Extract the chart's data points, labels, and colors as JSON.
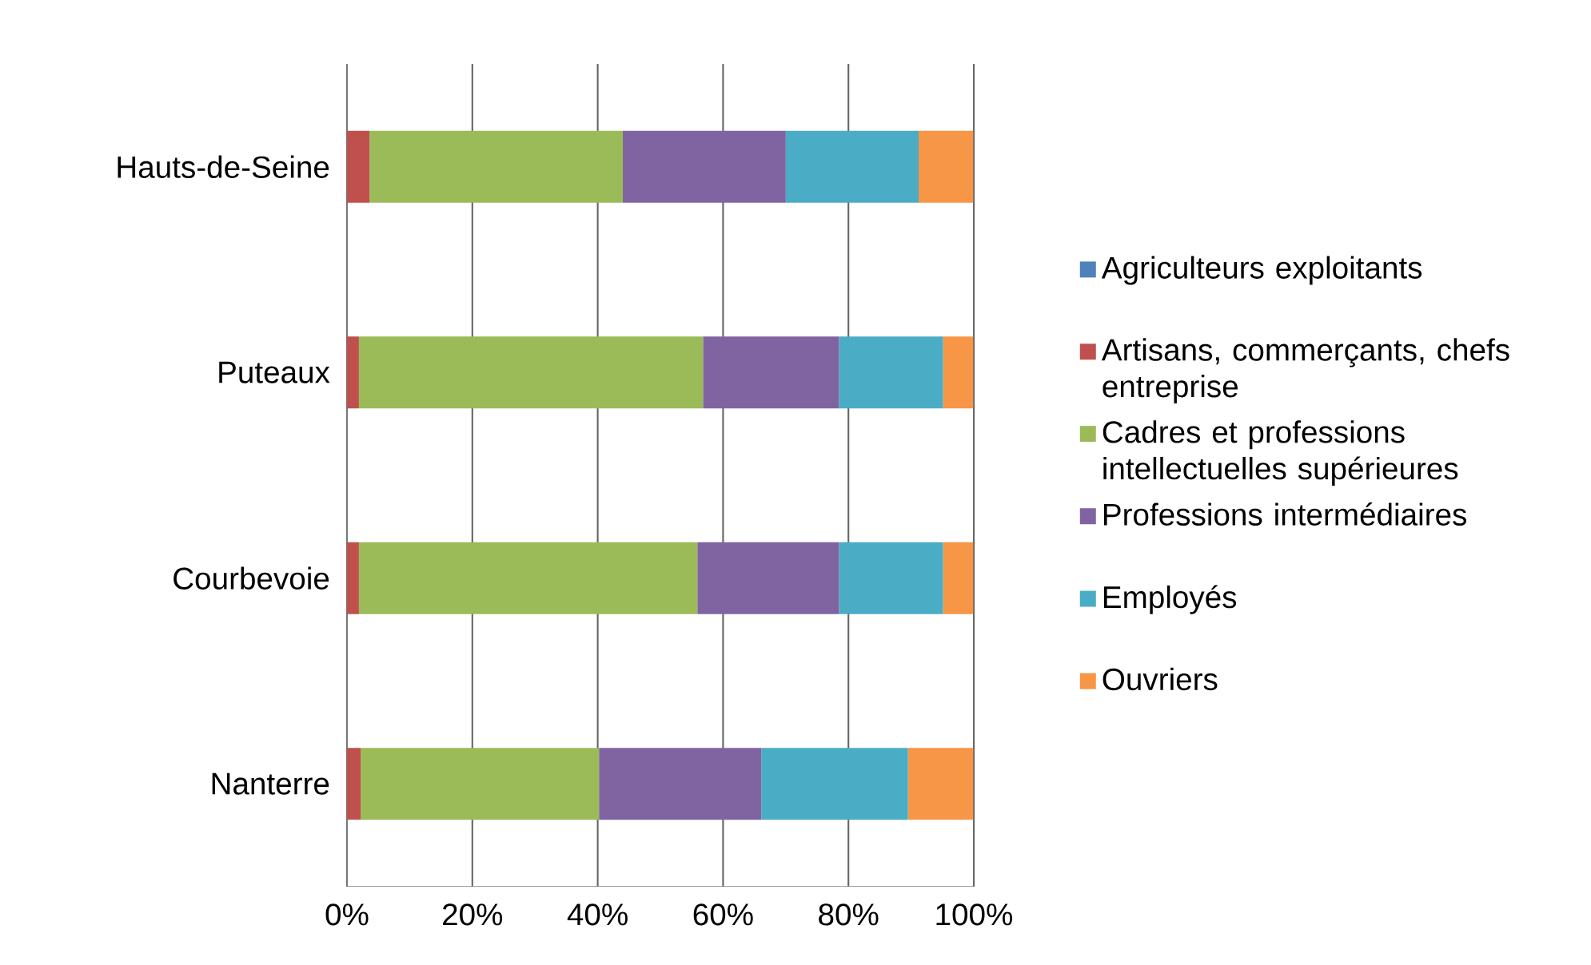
{
  "chart_data": {
    "type": "bar",
    "orientation": "horizontal",
    "stacked": true,
    "categories": [
      "Hauts-de-Seine",
      "Puteaux",
      "Courbevoie",
      "Nanterre"
    ],
    "series": [
      {
        "name": "Agriculteurs exploitants",
        "color": "#4f81bd",
        "values": [
          null,
          null,
          null,
          null
        ]
      },
      {
        "name": "Artisans, commerçants, chefs entreprise",
        "color": "#c0504d",
        "values": [
          3.6,
          1.9,
          1.9,
          2.2
        ]
      },
      {
        "name": "Cadres et professions intellectuelles supérieures",
        "color": "#9bbb59",
        "values": [
          40.4,
          54.9,
          54.0,
          38.0
        ]
      },
      {
        "name": "Professions intermédiaires",
        "color": "#8064a2",
        "values": [
          26.0,
          21.7,
          22.6,
          25.9
        ]
      },
      {
        "name": "Employés",
        "color": "#4bacc6",
        "values": [
          21.2,
          16.6,
          16.6,
          23.4
        ]
      },
      {
        "name": "Ouvriers",
        "color": "#f79646",
        "values": [
          8.7,
          4.8,
          4.8,
          10.4
        ]
      }
    ],
    "xlim": [
      0,
      100
    ],
    "xticks": [
      {
        "value": 0,
        "label": "0%"
      },
      {
        "value": 20,
        "label": "20%"
      },
      {
        "value": 40,
        "label": "40%"
      },
      {
        "value": 60,
        "label": "60%"
      },
      {
        "value": 80,
        "label": "80%"
      },
      {
        "value": 100,
        "label": "100%"
      }
    ],
    "grid": "x",
    "legend": "right"
  }
}
